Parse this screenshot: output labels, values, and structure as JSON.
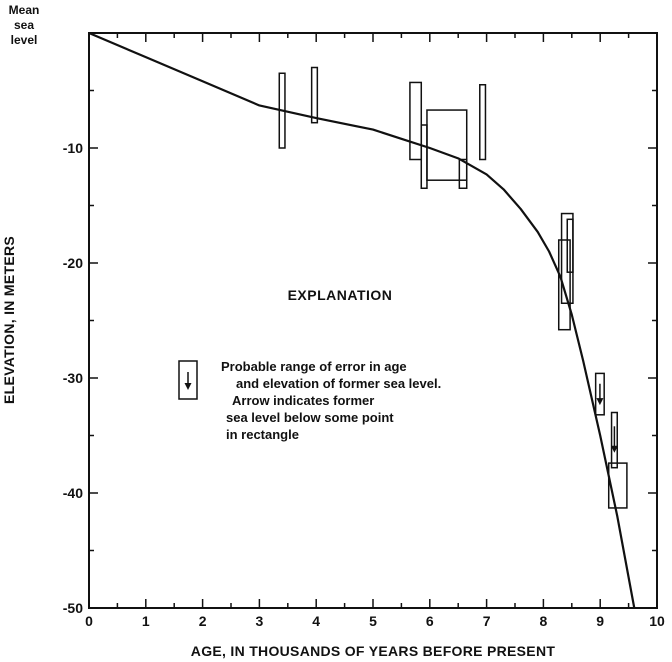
{
  "chart_data": {
    "type": "scatter",
    "title": "",
    "xlabel": "AGE, IN THOUSANDS OF YEARS BEFORE PRESENT",
    "ylabel": "ELEVATION, IN METERS",
    "top_label": [
      "Mean",
      "sea",
      "level"
    ],
    "xlim": [
      0,
      10
    ],
    "ylim": [
      -50,
      0
    ],
    "x_ticks": [
      "0",
      "1",
      "2",
      "3",
      "4",
      "5",
      "6",
      "7",
      "8",
      "9",
      "10"
    ],
    "y_ticks": [
      "-10",
      "-20",
      "-30",
      "-40",
      "-50"
    ],
    "y_tick_values": [
      -10,
      -20,
      -30,
      -40,
      -50
    ],
    "grid": false,
    "curve": {
      "x": [
        0,
        1,
        2,
        3,
        4,
        5,
        5.5,
        6,
        6.5,
        7,
        7.3,
        7.6,
        7.9,
        8.1,
        8.3,
        8.5,
        8.7,
        9.0,
        9.3,
        9.6
      ],
      "y": [
        0,
        -2.1,
        -4.2,
        -6.3,
        -7.4,
        -8.4,
        -9.2,
        -10.0,
        -10.9,
        -12.3,
        -13.6,
        -15.3,
        -17.3,
        -19.0,
        -21.2,
        -24.5,
        -28.5,
        -35.0,
        -42.0,
        -50.0
      ]
    },
    "error_boxes": [
      {
        "x": [
          3.35,
          3.45
        ],
        "y": [
          -10.0,
          -3.5
        ],
        "arrow": false
      },
      {
        "x": [
          3.92,
          4.02
        ],
        "y": [
          -7.8,
          -3.0
        ],
        "arrow": false
      },
      {
        "x": [
          5.65,
          5.85
        ],
        "y": [
          -11.0,
          -4.3
        ],
        "arrow": false
      },
      {
        "x": [
          5.85,
          5.95
        ],
        "y": [
          -13.5,
          -8.0
        ],
        "arrow": false
      },
      {
        "x": [
          5.95,
          6.65
        ],
        "y": [
          -12.8,
          -6.7
        ],
        "arrow": false
      },
      {
        "x": [
          6.52,
          6.65
        ],
        "y": [
          -13.5,
          -11.0
        ],
        "arrow": false
      },
      {
        "x": [
          6.88,
          6.98
        ],
        "y": [
          -11.0,
          -4.5
        ],
        "arrow": false
      },
      {
        "x": [
          8.27,
          8.47
        ],
        "y": [
          -25.8,
          -18.0
        ],
        "arrow": false
      },
      {
        "x": [
          8.32,
          8.52
        ],
        "y": [
          -23.5,
          -15.7
        ],
        "arrow": false
      },
      {
        "x": [
          8.42,
          8.52
        ],
        "y": [
          -20.8,
          -16.2
        ],
        "arrow": false
      },
      {
        "x": [
          8.92,
          9.07
        ],
        "y": [
          -33.2,
          -29.6
        ],
        "arrow": true
      },
      {
        "x": [
          9.2,
          9.3
        ],
        "y": [
          -37.8,
          -33.0
        ],
        "arrow": true
      },
      {
        "x": [
          9.15,
          9.47
        ],
        "y": [
          -41.3,
          -37.4
        ],
        "arrow": false
      }
    ],
    "legend": {
      "title": "EXPLANATION",
      "lines": [
        "Probable range of error in age",
        "and elevation of former sea level.",
        "Arrow indicates former",
        "sea level below  some point",
        "in rectangle"
      ]
    }
  }
}
